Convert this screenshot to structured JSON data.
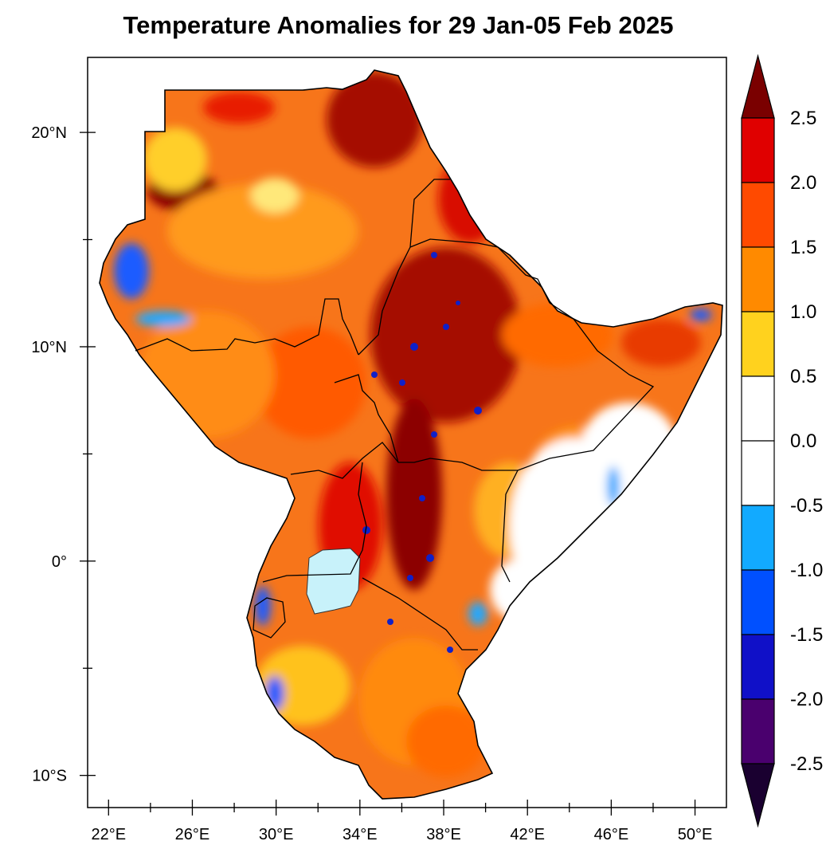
{
  "title": "Temperature Anomalies for 29 Jan-05 Feb 2025",
  "map": {
    "lon_range": [
      21,
      51.5
    ],
    "lat_range": [
      -11.5,
      23.5
    ],
    "lon_ticks": [
      "22°E",
      "26°E",
      "30°E",
      "34°E",
      "38°E",
      "42°E",
      "46°E",
      "50°E"
    ],
    "lat_ticks": [
      "20°N",
      "10°N",
      "0°",
      "10°S"
    ],
    "region": "Greater Horn of Africa",
    "lake_fill": "#c8f2fa"
  },
  "colorbar": {
    "levels": [
      "2.5",
      "2.0",
      "1.5",
      "1.0",
      "0.5",
      "0.0",
      "-0.5",
      "-1.0",
      "-1.5",
      "-2.0",
      "-2.5"
    ],
    "colors_top_to_bottom": [
      "#7a0000",
      "#e00000",
      "#ff4a00",
      "#ff8a00",
      "#ffd21e",
      "#ffffff",
      "#ffffff",
      "#12aaff",
      "#0050ff",
      "#1010c8",
      "#4a006e",
      "#1a0030"
    ],
    "extend": "both"
  }
}
